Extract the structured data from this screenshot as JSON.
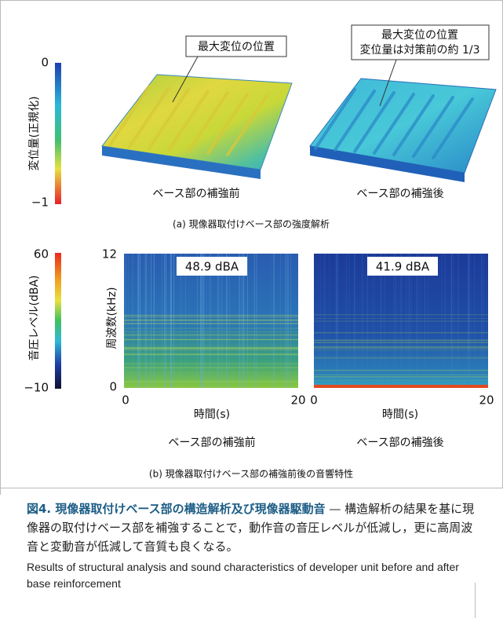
{
  "panel_a": {
    "colorbar": {
      "label": "変位量(正規化)",
      "top": "0",
      "bottom": "−1"
    },
    "left": {
      "callout": "最大変位の位置",
      "caption": "ベース部の補強前"
    },
    "right": {
      "callout": [
        "最大変位の位置",
        "変位量は対策前の約 1/3"
      ],
      "caption": "ベース部の補強後"
    },
    "caption": "(a) 現像器取付けベース部の強度解析"
  },
  "panel_b": {
    "colorbar": {
      "label": "音圧レベル(dBA)",
      "top": "60",
      "bottom": "−10"
    },
    "y_label": "周波数(kHz)",
    "spectrograms": [
      {
        "level": "48.9 dBA",
        "caption": "ベース部の補強前",
        "x_label": "時間(s)",
        "x_ticks": [
          "0",
          "20"
        ],
        "y_ticks": [
          "12",
          "0"
        ]
      },
      {
        "level": "41.9 dBA",
        "caption": "ベース部の補強後",
        "x_label": "時間(s)",
        "x_ticks": [
          "0",
          "20"
        ]
      }
    ],
    "caption": "(b) 現像器取付けベース部の補強前後の音響特性"
  },
  "figure_caption": {
    "title": "図4.  現像器取付けベース部の構造解析及び現像器駆動音",
    "text": "— 構造解析の結果を基に現像器の取付けベース部を補強することで，動作音の音圧レベルが低減し，更に高周波音と変動音が低減して音質も良くなる。",
    "english": "Results of structural analysis and sound characteristics of developer unit before and after base reinforcement"
  }
}
